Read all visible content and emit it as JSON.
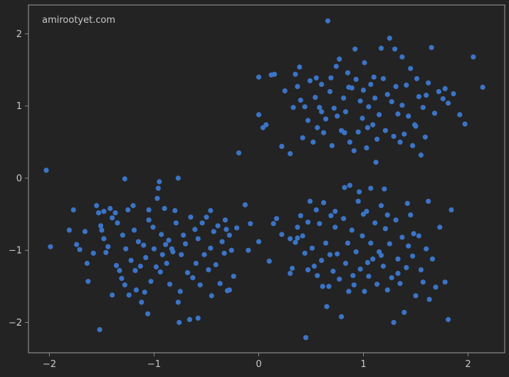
{
  "chart_data": {
    "type": "scatter",
    "watermark": "amirootyet.com",
    "xlim": [
      -2.2,
      2.35
    ],
    "ylim": [
      -2.42,
      2.4
    ],
    "xticks": [
      -2,
      -1,
      0,
      1,
      2
    ],
    "yticks": [
      -2,
      -1,
      0,
      1,
      2
    ],
    "grid": false,
    "colors": {
      "background": "#232323",
      "axes": "#8a8a8a",
      "point": "#3b74c6",
      "text": "#c8c8c8"
    },
    "series": [
      {
        "points": [
          [
            -2.03,
            0.11
          ],
          [
            -1.99,
            -0.95
          ],
          [
            -1.81,
            -0.72
          ],
          [
            -1.77,
            -0.44
          ],
          [
            -1.74,
            -0.92
          ],
          [
            -1.71,
            -0.99
          ],
          [
            -1.66,
            -0.74
          ],
          [
            -1.64,
            -1.18
          ],
          [
            -1.58,
            -1.04
          ],
          [
            -1.55,
            -0.38
          ],
          [
            -1.53,
            -0.48
          ],
          [
            -1.51,
            -0.66
          ],
          [
            -1.5,
            -0.72
          ],
          [
            -1.48,
            -0.46
          ],
          [
            -1.46,
            -1.03
          ],
          [
            -1.44,
            -0.95
          ],
          [
            -1.42,
            -0.42
          ],
          [
            -1.4,
            -0.55
          ],
          [
            -1.37,
            -0.48
          ],
          [
            -1.35,
            -0.62
          ],
          [
            -1.33,
            -1.28
          ],
          [
            -1.31,
            -1.39
          ],
          [
            -1.3,
            -0.79
          ],
          [
            -1.28,
            -1.48
          ],
          [
            -1.27,
            -0.98
          ],
          [
            -1.25,
            -0.44
          ],
          [
            -1.24,
            -1.62
          ],
          [
            -1.22,
            -1.14
          ],
          [
            -1.2,
            -0.38
          ],
          [
            -1.19,
            -0.72
          ],
          [
            -1.17,
            -1.55
          ],
          [
            -1.15,
            -0.88
          ],
          [
            -1.13,
            -1.22
          ],
          [
            -1.12,
            -1.72
          ],
          [
            -1.1,
            -0.93
          ],
          [
            -1.08,
            -1.1
          ],
          [
            -1.06,
            -1.88
          ],
          [
            -1.05,
            -0.58
          ],
          [
            -1.03,
            -1.43
          ],
          [
            -1.01,
            -0.68
          ],
          [
            -1.0,
            -0.98
          ],
          [
            -0.98,
            -1.23
          ],
          [
            -0.97,
            -0.28
          ],
          [
            -0.96,
            -0.14
          ],
          [
            -0.95,
            -0.05
          ],
          [
            -0.93,
            -0.78
          ],
          [
            -0.92,
            -1.06
          ],
          [
            -0.9,
            -0.42
          ],
          [
            -0.89,
            -0.92
          ],
          [
            -0.88,
            -1.18
          ],
          [
            -0.86,
            -0.86
          ],
          [
            -0.85,
            -1.47
          ],
          [
            -0.83,
            -0.98
          ],
          [
            -0.82,
            -1.02
          ],
          [
            -0.8,
            -0.45
          ],
          [
            -0.79,
            -0.62
          ],
          [
            -0.77,
            -1.72
          ],
          [
            -0.75,
            -1.57
          ],
          [
            -0.74,
            -1.06
          ],
          [
            -0.72,
            -0.79
          ],
          [
            -0.7,
            -0.91
          ],
          [
            -0.68,
            -1.31
          ],
          [
            -0.66,
            -1.96
          ],
          [
            -0.65,
            -0.54
          ],
          [
            -0.63,
            -1.38
          ],
          [
            -0.61,
            -0.71
          ],
          [
            -0.6,
            -1.18
          ],
          [
            -0.58,
            -0.84
          ],
          [
            -0.56,
            -1.48
          ],
          [
            -0.54,
            -0.62
          ],
          [
            -0.52,
            -1.06
          ],
          [
            -0.5,
            -0.54
          ],
          [
            -0.48,
            -1.27
          ],
          [
            -0.46,
            -0.97
          ],
          [
            -0.45,
            -1.63
          ],
          [
            -0.43,
            -0.74
          ],
          [
            -0.41,
            -1.2
          ],
          [
            -0.39,
            -0.66
          ],
          [
            -0.37,
            -1.46
          ],
          [
            -0.35,
            -0.88
          ],
          [
            -0.33,
            -1.04
          ],
          [
            -0.32,
            -0.58
          ],
          [
            -0.3,
            -1.56
          ],
          [
            -0.28,
            -0.79
          ],
          [
            -0.26,
            -1.0
          ],
          [
            -0.24,
            -1.36
          ],
          [
            -0.21,
            -0.69
          ],
          [
            -1.52,
            -2.1
          ],
          [
            -1.4,
            -1.62
          ],
          [
            -1.18,
            -1.28
          ],
          [
            -1.05,
            -0.44
          ],
          [
            -0.76,
            -2.0
          ],
          [
            -0.77,
            0.0
          ],
          [
            -1.28,
            -0.01
          ],
          [
            -1.63,
            -1.43
          ],
          [
            -1.48,
            -0.84
          ],
          [
            -1.36,
            -1.21
          ],
          [
            -1.09,
            -1.58
          ],
          [
            -0.94,
            -1.3
          ],
          [
            -0.58,
            -1.94
          ],
          [
            -0.46,
            -0.45
          ],
          [
            -0.28,
            -1.55
          ],
          [
            -0.13,
            -0.37
          ],
          [
            -0.31,
            -0.71
          ],
          [
            0.15,
            1.44
          ],
          [
            0.22,
            0.44
          ],
          [
            0.25,
            1.21
          ],
          [
            0.3,
            0.34
          ],
          [
            0.33,
            0.98
          ],
          [
            0.37,
            1.27
          ],
          [
            0.4,
            1.08
          ],
          [
            0.42,
            0.56
          ],
          [
            0.44,
            0.99
          ],
          [
            0.47,
            0.8
          ],
          [
            0.49,
            1.35
          ],
          [
            0.52,
            0.5
          ],
          [
            0.54,
            1.12
          ],
          [
            0.56,
            0.7
          ],
          [
            0.58,
            0.98
          ],
          [
            0.6,
            1.3
          ],
          [
            0.62,
            0.63
          ],
          [
            0.64,
            0.82
          ],
          [
            0.66,
            2.18
          ],
          [
            0.68,
            1.2
          ],
          [
            0.7,
            0.45
          ],
          [
            0.72,
            0.97
          ],
          [
            0.74,
            1.55
          ],
          [
            0.75,
            0.86
          ],
          [
            0.77,
            1.65
          ],
          [
            0.79,
            0.66
          ],
          [
            0.81,
            1.11
          ],
          [
            0.83,
            0.92
          ],
          [
            0.85,
            1.46
          ],
          [
            0.87,
            0.5
          ],
          [
            0.89,
            1.25
          ],
          [
            0.91,
            0.38
          ],
          [
            0.93,
            1.37
          ],
          [
            0.95,
            0.64
          ],
          [
            0.97,
            1.07
          ],
          [
            0.99,
            0.83
          ],
          [
            1.01,
            1.6
          ],
          [
            1.03,
            0.42
          ],
          [
            1.05,
            0.99
          ],
          [
            1.07,
            1.3
          ],
          [
            1.09,
            0.74
          ],
          [
            1.11,
            1.11
          ],
          [
            1.13,
            0.54
          ],
          [
            1.15,
            0.88
          ],
          [
            1.17,
            1.8
          ],
          [
            1.19,
            1.38
          ],
          [
            1.21,
            0.66
          ],
          [
            1.23,
            1.16
          ],
          [
            1.25,
            1.94
          ],
          [
            1.27,
            1.06
          ],
          [
            1.29,
            0.58
          ],
          [
            1.31,
            1.27
          ],
          [
            1.33,
            0.89
          ],
          [
            1.35,
            0.5
          ],
          [
            1.37,
            1.01
          ],
          [
            1.39,
            0.61
          ],
          [
            1.41,
            1.29
          ],
          [
            1.43,
            0.86
          ],
          [
            1.45,
            1.52
          ],
          [
            1.47,
            0.45
          ],
          [
            1.49,
            0.74
          ],
          [
            1.51,
            1.38
          ],
          [
            1.53,
            1.13
          ],
          [
            1.55,
            0.32
          ],
          [
            1.57,
            0.98
          ],
          [
            1.59,
            0.57
          ],
          [
            1.62,
            1.32
          ],
          [
            1.65,
            1.81
          ],
          [
            1.68,
            0.9
          ],
          [
            1.72,
            1.2
          ],
          [
            1.76,
            1.1
          ],
          [
            1.81,
            1.04
          ],
          [
            1.86,
            1.17
          ],
          [
            1.92,
            0.88
          ],
          [
            1.97,
            0.75
          ],
          [
            2.05,
            1.68
          ],
          [
            2.14,
            1.26
          ],
          [
            1.78,
            1.24
          ],
          [
            1.6,
            1.15
          ],
          [
            1.3,
            1.79
          ],
          [
            1.1,
            1.4
          ],
          [
            0.92,
            1.79
          ],
          [
            0.86,
            1.26
          ],
          [
            0.69,
            1.39
          ],
          [
            0.55,
            1.39
          ],
          [
            0.39,
            1.54
          ],
          [
            0.35,
            1.44
          ],
          [
            0.6,
            0.92
          ],
          [
            1.0,
            1.22
          ],
          [
            1.37,
            1.68
          ],
          [
            1.5,
            0.72
          ],
          [
            1.12,
            0.22
          ],
          [
            0.82,
            0.63
          ],
          [
            1.04,
            0.7
          ],
          [
            0.0,
            1.4
          ],
          [
            0.0,
            0.88
          ],
          [
            0.04,
            0.7
          ],
          [
            0.07,
            0.74
          ],
          [
            0.12,
            1.43
          ],
          [
            -0.19,
            0.35
          ],
          [
            -0.1,
            -1.0
          ],
          [
            -0.08,
            -0.63
          ],
          [
            0.0,
            -0.88
          ],
          [
            0.1,
            -1.15
          ],
          [
            0.17,
            -0.56
          ],
          [
            0.22,
            -0.78
          ],
          [
            0.3,
            -0.84
          ],
          [
            0.3,
            -1.32
          ],
          [
            0.32,
            -1.25
          ],
          [
            0.35,
            -0.89
          ],
          [
            0.37,
            -0.68
          ],
          [
            0.4,
            -0.52
          ],
          [
            0.42,
            -0.8
          ],
          [
            0.44,
            -1.04
          ],
          [
            0.45,
            -2.21
          ],
          [
            0.47,
            -0.61
          ],
          [
            0.49,
            -0.32
          ],
          [
            0.51,
            -0.97
          ],
          [
            0.53,
            -1.22
          ],
          [
            0.55,
            -0.44
          ],
          [
            0.56,
            -1.35
          ],
          [
            0.58,
            -0.63
          ],
          [
            0.6,
            -1.14
          ],
          [
            0.62,
            -0.34
          ],
          [
            0.64,
            -0.9
          ],
          [
            0.65,
            -1.78
          ],
          [
            0.67,
            -1.5
          ],
          [
            0.69,
            -0.52
          ],
          [
            0.71,
            -1.29
          ],
          [
            0.73,
            -0.68
          ],
          [
            0.75,
            -1.05
          ],
          [
            0.77,
            -1.4
          ],
          [
            0.79,
            -1.92
          ],
          [
            0.81,
            -0.56
          ],
          [
            0.83,
            -1.18
          ],
          [
            0.85,
            -0.9
          ],
          [
            0.87,
            -0.1
          ],
          [
            0.89,
            -0.72
          ],
          [
            0.91,
            -1.48
          ],
          [
            0.93,
            -1.02
          ],
          [
            0.95,
            -0.32
          ],
          [
            0.97,
            -1.26
          ],
          [
            0.99,
            -0.8
          ],
          [
            1.01,
            -1.57
          ],
          [
            1.03,
            -0.46
          ],
          [
            1.05,
            -1.36
          ],
          [
            1.07,
            -0.9
          ],
          [
            1.09,
            -1.12
          ],
          [
            1.11,
            -0.62
          ],
          [
            1.13,
            -1.47
          ],
          [
            1.15,
            -1.02
          ],
          [
            1.17,
            -0.38
          ],
          [
            1.19,
            -1.22
          ],
          [
            1.21,
            -0.7
          ],
          [
            1.23,
            -1.55
          ],
          [
            1.25,
            -0.91
          ],
          [
            1.27,
            -1.38
          ],
          [
            1.29,
            -2.0
          ],
          [
            1.31,
            -0.58
          ],
          [
            1.33,
            -1.12
          ],
          [
            1.35,
            -1.46
          ],
          [
            1.37,
            -0.82
          ],
          [
            1.39,
            -1.86
          ],
          [
            1.41,
            -1.24
          ],
          [
            1.43,
            -0.94
          ],
          [
            1.45,
            -0.51
          ],
          [
            1.47,
            -1.08
          ],
          [
            1.5,
            -1.63
          ],
          [
            1.53,
            -0.8
          ],
          [
            1.57,
            -1.44
          ],
          [
            1.6,
            -0.98
          ],
          [
            1.63,
            -1.68
          ],
          [
            1.66,
            -1.12
          ],
          [
            1.69,
            -1.51
          ],
          [
            1.73,
            -0.68
          ],
          [
            1.78,
            -1.44
          ],
          [
            1.81,
            -1.96
          ],
          [
            1.84,
            -0.44
          ],
          [
            1.62,
            -0.32
          ],
          [
            1.42,
            -0.35
          ],
          [
            1.07,
            -0.14
          ],
          [
            0.82,
            -0.13
          ],
          [
            0.96,
            -0.19
          ],
          [
            1.2,
            -0.15
          ],
          [
            1.33,
            -1.32
          ],
          [
            0.61,
            -1.5
          ],
          [
            0.47,
            -1.27
          ],
          [
            0.37,
            -0.83
          ],
          [
            0.14,
            -0.63
          ],
          [
            0.68,
            -1.06
          ],
          [
            0.86,
            -1.57
          ],
          [
            1.04,
            -1.17
          ],
          [
            1.23,
            -0.51
          ],
          [
            1.48,
            -0.77
          ],
          [
            1.55,
            -1.27
          ],
          [
            1.0,
            -0.5
          ],
          [
            0.73,
            -0.46
          ],
          [
            0.9,
            -1.35
          ],
          [
            1.17,
            -1.07
          ]
        ]
      }
    ]
  }
}
